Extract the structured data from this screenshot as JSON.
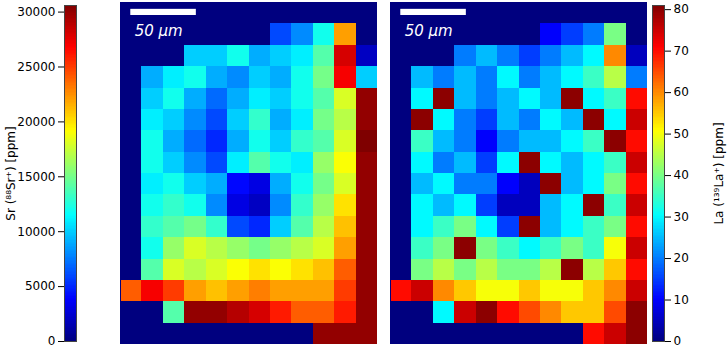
{
  "chart_data": [
    {
      "type": "heatmap",
      "legend": "left",
      "tick_labels": false,
      "xlim": [
        0,
        196
      ],
      "ylim": [
        0,
        265
      ],
      "scale_bar": {
        "value": 50,
        "label": "50 μm"
      },
      "colorbar": {
        "label": "Sr (⁸⁸Sr⁺) [ppm]",
        "range": [
          0,
          30600
        ],
        "ticks": [
          0,
          5000,
          10000,
          15000,
          20000,
          25000,
          30000
        ]
      },
      "cells": [
        [
          0,
          0,
          0,
          0,
          0,
          0,
          0,
          0,
          0,
          0,
          0,
          0
        ],
        [
          0,
          0,
          0,
          0,
          0,
          0,
          0,
          6000,
          8000,
          12000,
          22000,
          0
        ],
        [
          0,
          0,
          0,
          10000,
          10000,
          12000,
          9000,
          10000,
          11000,
          14000,
          28000,
          2000
        ],
        [
          0,
          9000,
          11000,
          12000,
          9000,
          8000,
          10000,
          9000,
          12000,
          15000,
          27000,
          10000
        ],
        [
          0,
          10000,
          12000,
          9000,
          7000,
          9000,
          11000,
          10000,
          12000,
          14000,
          18000,
          30000
        ],
        [
          0,
          11000,
          10000,
          8000,
          6000,
          10000,
          13000,
          9000,
          11000,
          15000,
          17000,
          30000
        ],
        [
          0,
          12000,
          9000,
          7000,
          5000,
          9000,
          12000,
          10000,
          13000,
          14000,
          18000,
          31000
        ],
        [
          0,
          12000,
          10000,
          8000,
          6000,
          11000,
          14000,
          12000,
          11000,
          16000,
          19000,
          30000
        ],
        [
          0,
          11000,
          12000,
          10000,
          9000,
          4000,
          3000,
          9000,
          12000,
          15000,
          18000,
          30000
        ],
        [
          0,
          12000,
          13000,
          12000,
          8000,
          3000,
          2000,
          8000,
          13000,
          16000,
          20000,
          30000
        ],
        [
          0,
          13000,
          14000,
          15000,
          13000,
          6000,
          5000,
          10000,
          14000,
          17000,
          21000,
          30000
        ],
        [
          0,
          12000,
          16000,
          18000,
          17000,
          16000,
          15000,
          16000,
          17000,
          18000,
          22000,
          30000
        ],
        [
          0,
          14000,
          18000,
          17000,
          18000,
          19000,
          20000,
          19000,
          20000,
          21000,
          24000,
          30000
        ],
        [
          24000,
          27000,
          25000,
          22000,
          21000,
          22000,
          23000,
          22000,
          22000,
          22000,
          25000,
          30000
        ],
        [
          0,
          0,
          14000,
          30000,
          30000,
          29000,
          28000,
          26000,
          24000,
          24000,
          26000,
          30000
        ],
        [
          0,
          0,
          0,
          0,
          0,
          0,
          0,
          0,
          0,
          30000,
          30000,
          30000
        ]
      ]
    },
    {
      "type": "heatmap",
      "legend": "right",
      "tick_labels": false,
      "xlim": [
        0,
        196
      ],
      "ylim": [
        0,
        265
      ],
      "scale_bar": {
        "value": 50,
        "label": "50 μm"
      },
      "colorbar": {
        "label": "La (¹³⁹La⁺) [ppm]",
        "range": [
          0,
          81
        ],
        "ticks": [
          0,
          10,
          20,
          30,
          40,
          50,
          60,
          70,
          80
        ]
      },
      "cells": [
        [
          0,
          0,
          0,
          0,
          0,
          0,
          0,
          0,
          0,
          0,
          0,
          0
        ],
        [
          0,
          0,
          0,
          0,
          0,
          0,
          0,
          10,
          15,
          20,
          40,
          0
        ],
        [
          0,
          0,
          0,
          20,
          25,
          20,
          15,
          20,
          25,
          30,
          60,
          5
        ],
        [
          0,
          25,
          20,
          25,
          20,
          30,
          20,
          25,
          30,
          35,
          45,
          20
        ],
        [
          0,
          30,
          80,
          25,
          20,
          25,
          30,
          25,
          80,
          30,
          35,
          70
        ],
        [
          0,
          80,
          30,
          20,
          15,
          25,
          20,
          30,
          25,
          80,
          30,
          75
        ],
        [
          0,
          35,
          25,
          20,
          10,
          20,
          25,
          25,
          30,
          35,
          80,
          70
        ],
        [
          0,
          30,
          20,
          25,
          15,
          30,
          80,
          30,
          25,
          30,
          35,
          75
        ],
        [
          0,
          25,
          30,
          20,
          20,
          10,
          5,
          80,
          25,
          30,
          40,
          70
        ],
        [
          0,
          30,
          25,
          30,
          15,
          5,
          5,
          25,
          30,
          80,
          35,
          75
        ],
        [
          0,
          30,
          35,
          40,
          30,
          15,
          80,
          25,
          30,
          35,
          40,
          70
        ],
        [
          0,
          35,
          40,
          80,
          40,
          35,
          30,
          35,
          40,
          35,
          50,
          75
        ],
        [
          0,
          40,
          45,
          40,
          45,
          40,
          40,
          45,
          80,
          45,
          55,
          70
        ],
        [
          70,
          75,
          60,
          55,
          50,
          50,
          55,
          50,
          50,
          55,
          60,
          75
        ],
        [
          0,
          0,
          30,
          75,
          80,
          70,
          65,
          60,
          55,
          55,
          65,
          80
        ],
        [
          0,
          0,
          0,
          0,
          0,
          0,
          0,
          0,
          0,
          70,
          75,
          80
        ]
      ]
    }
  ]
}
